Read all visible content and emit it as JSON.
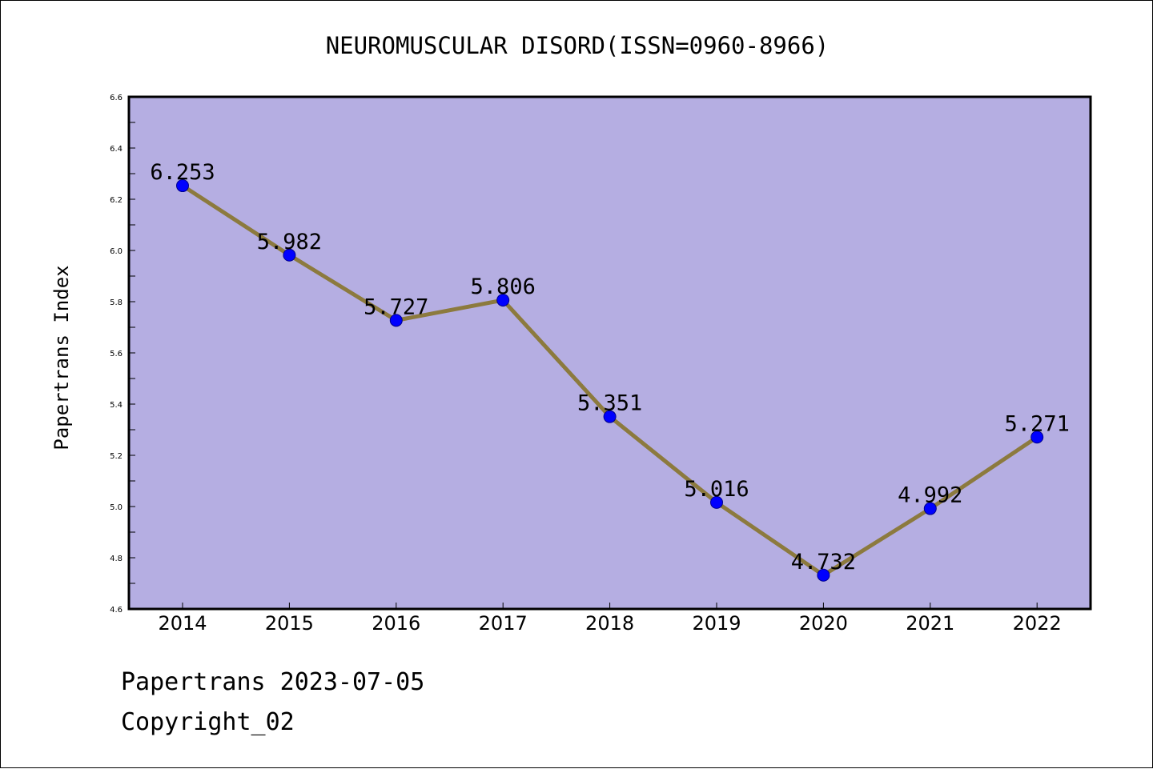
{
  "chart_data": {
    "type": "line",
    "title": "NEUROMUSCULAR DISORD(ISSN=0960-8966)",
    "xlabel": "",
    "ylabel": "Papertrans Index",
    "categories": [
      "2014",
      "2015",
      "2016",
      "2017",
      "2018",
      "2019",
      "2020",
      "2021",
      "2022"
    ],
    "series": [
      {
        "values": [
          6.253,
          5.982,
          5.727,
          5.806,
          5.351,
          5.016,
          4.732,
          4.992,
          5.271
        ],
        "data_labels": [
          "6.253",
          "5.982",
          "5.727",
          "5.806",
          "5.351",
          "5.016",
          "4.732",
          "4.992",
          "5.271"
        ]
      }
    ],
    "ylim": [
      4.6,
      6.6
    ],
    "yticks": [
      "4.6",
      "4.8",
      "5.0",
      "5.2",
      "5.4",
      "5.6",
      "5.8",
      "6.0",
      "6.2",
      "6.4",
      "6.6"
    ],
    "grid": false,
    "legend": "none",
    "colors": {
      "plot_background": "#b5aee2",
      "line": "#8c7a3e",
      "marker": "#0000ff",
      "marker_edge": "#00008b"
    }
  },
  "footer": {
    "line1": "Papertrans 2023-07-05",
    "line2": "Copyright_02"
  }
}
